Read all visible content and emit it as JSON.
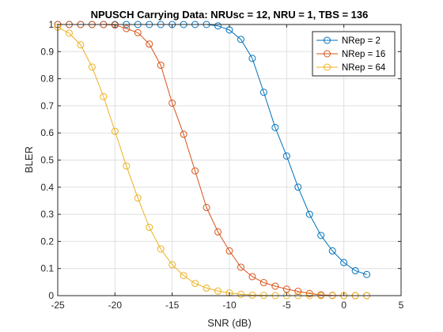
{
  "chart_data": {
    "type": "line",
    "title": "NPUSCH Carrying Data: NRUsc = 12, NRU = 1, TBS = 136",
    "xlabel": "SNR (dB)",
    "ylabel": "BLER",
    "xlim": [
      -25,
      5
    ],
    "ylim": [
      0,
      1
    ],
    "xticks": [
      -25,
      -20,
      -15,
      -10,
      -5,
      0,
      5
    ],
    "yticks": [
      0,
      0.1,
      0.2,
      0.3,
      0.4,
      0.5,
      0.6,
      0.7,
      0.8,
      0.9,
      1
    ],
    "xtick_labels": [
      "-25",
      "-20",
      "-15",
      "-10",
      "-5",
      "0",
      "5"
    ],
    "ytick_labels": [
      "0",
      "0.1",
      "0.2",
      "0.3",
      "0.4",
      "0.5",
      "0.6",
      "0.7",
      "0.8",
      "0.9",
      "1"
    ],
    "grid": true,
    "legend_position": "top-right",
    "x": [
      -25,
      -24,
      -23,
      -22,
      -21,
      -20,
      -19,
      -18,
      -17,
      -16,
      -15,
      -14,
      -13,
      -12,
      -11,
      -10,
      -9,
      -8,
      -7,
      -6,
      -5,
      -4,
      -3,
      -2,
      -1,
      0,
      1,
      2
    ],
    "series": [
      {
        "name": "NRep = 2",
        "color": "#0072BD",
        "values": [
          1,
          1,
          1,
          1,
          1,
          1,
          1,
          1,
          1,
          1,
          1,
          1,
          1,
          1,
          0.995,
          0.98,
          0.945,
          0.875,
          0.75,
          0.62,
          0.515,
          0.4,
          0.3,
          0.222,
          0.165,
          0.122,
          0.092,
          0.078
        ]
      },
      {
        "name": "NRep = 16",
        "color": "#D95319",
        "values": [
          1,
          1,
          1,
          1,
          1,
          0.998,
          0.985,
          0.97,
          0.928,
          0.85,
          0.71,
          0.595,
          0.46,
          0.325,
          0.235,
          0.165,
          0.105,
          0.07,
          0.048,
          0.035,
          0.024,
          0.016,
          0.008,
          0.003,
          0.001,
          0,
          0,
          0
        ]
      },
      {
        "name": "NRep = 64",
        "color": "#EDB120",
        "values": [
          0.99,
          0.968,
          0.925,
          0.843,
          0.734,
          0.606,
          0.478,
          0.36,
          0.252,
          0.172,
          0.114,
          0.074,
          0.045,
          0.028,
          0.017,
          0.01,
          0.005,
          0.002,
          0.001,
          0,
          0,
          0,
          0,
          0,
          0,
          0,
          0,
          0
        ]
      }
    ]
  }
}
